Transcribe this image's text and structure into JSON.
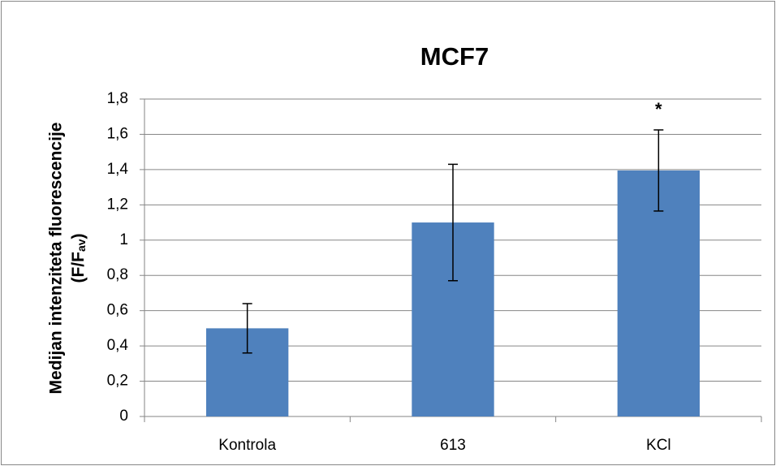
{
  "chart_data": {
    "type": "bar",
    "title": "MCF7",
    "y_label": [
      "Medijan intenziteta fluorescencije",
      "(F/F",
      "av",
      ")"
    ],
    "categories": [
      "Kontrola",
      "613",
      "KCl"
    ],
    "values": [
      0.5,
      1.1,
      1.395
    ],
    "errors": [
      0.14,
      0.33,
      0.23
    ],
    "color": "#4f81bd",
    "ylim": [
      0,
      1.8
    ],
    "yticks": [
      0,
      {
        "value": 0.2,
        "label": "0,2"
      },
      {
        "value": 0.4,
        "label": "0,4"
      },
      {
        "value": 0.6,
        "label": "0,6"
      },
      {
        "value": 0.8,
        "label": "0,8"
      },
      1,
      {
        "value": 1.2,
        "label": "1,2"
      },
      {
        "value": 1.4,
        "label": "1,4"
      },
      {
        "value": 1.6,
        "label": "1,6"
      },
      {
        "value": 1.8,
        "label": "1,8"
      }
    ],
    "grid": true,
    "annotations": [
      {
        "text": "*",
        "x": "KCl"
      }
    ]
  }
}
